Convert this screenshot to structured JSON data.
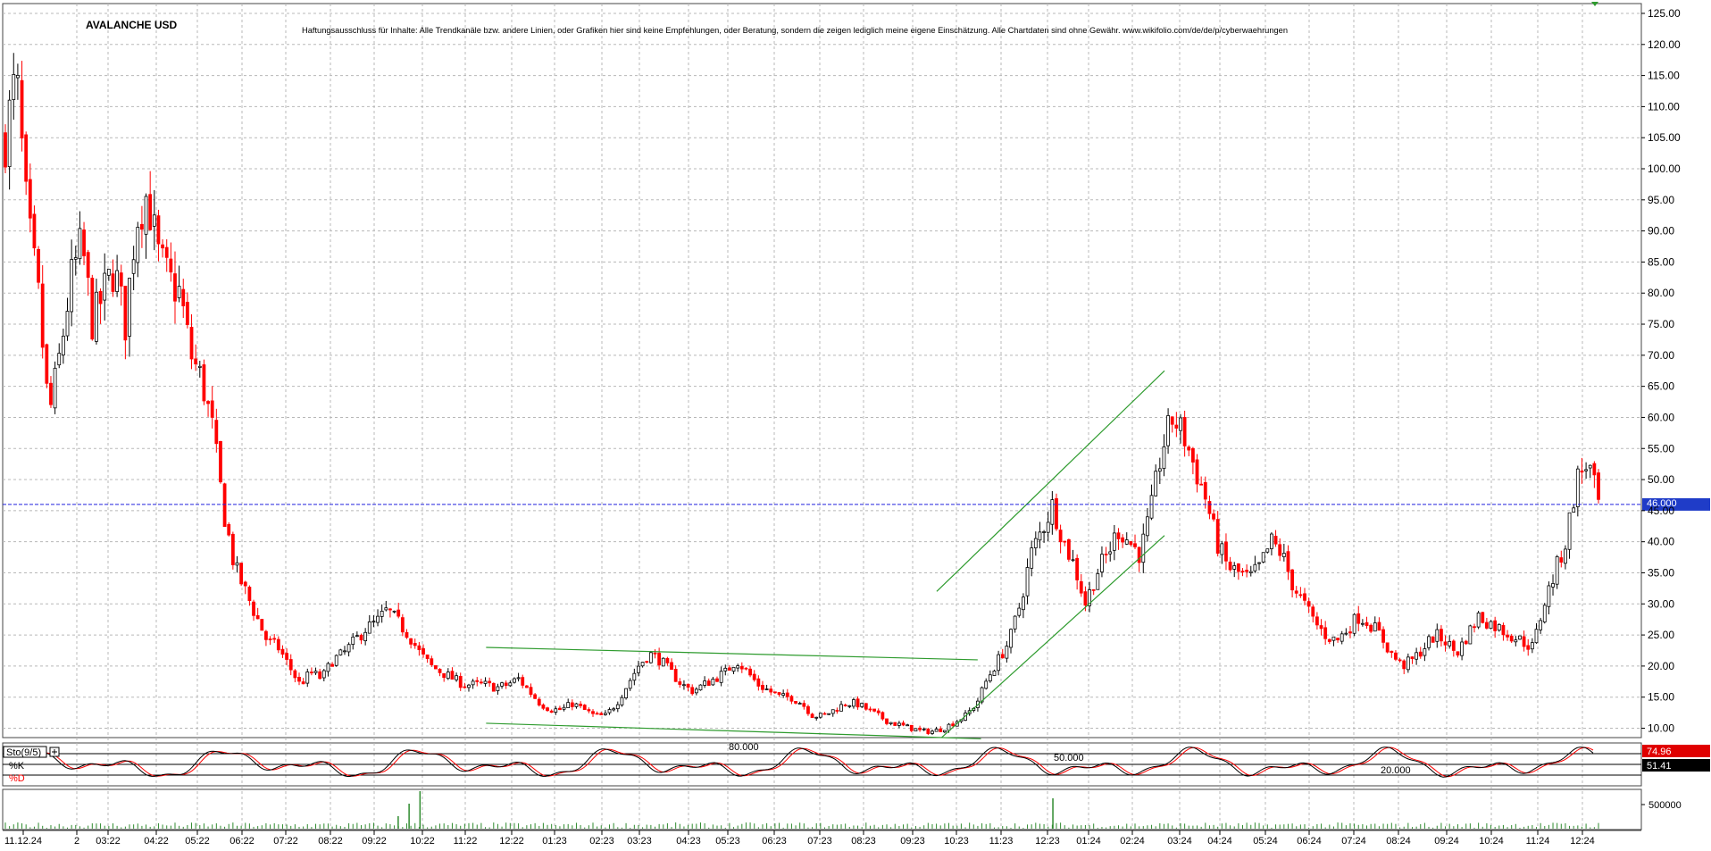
{
  "chart_data": {
    "type": "candlestick",
    "title": "AVALANCHE USD",
    "disclaimer": "Haftungsausschluss für Inhalte: Alle Trendkanäle bzw. andere Linien, oder Grafiken hier sind keine Empfehlungen, oder Beratung, sondern die zeigen lediglich meine eigene Einschätzung. Alle Chartdaten sind ohne Gewähr.  www.wikifolio.com/de/de/p/cyberwaehrungen",
    "y_ticks": [
      "125.00",
      "120.00",
      "115.00",
      "110.00",
      "105.00",
      "100.00",
      "95.00",
      "90.00",
      "85.00",
      "80.00",
      "75.00",
      "70.00",
      "65.00",
      "60.00",
      "55.00",
      "50.00",
      "45.00",
      "40.00",
      "35.00",
      "30.00",
      "25.00",
      "20.00",
      "15.00",
      "10.00"
    ],
    "ylim": [
      7.5,
      127
    ],
    "current_price": 46.0,
    "current_price_label": "46.000",
    "x_ticks": [
      "11.12.24",
      "2",
      "03:22",
      "04:22",
      "05:22",
      "06:22",
      "07:22",
      "08:22",
      "09:22",
      "10:22",
      "11:22",
      "12:22",
      "01:23",
      "02:23",
      "03:23",
      "04:23",
      "05:23",
      "06:23",
      "07:23",
      "08:23",
      "09:23",
      "10:23",
      "11:23",
      "12:23",
      "01:24",
      "02:24",
      "03:24",
      "04:24",
      "05:24",
      "06:24",
      "07:24",
      "08:24",
      "09:24",
      "10:24",
      "11:24",
      "12:24"
    ],
    "price_path": [
      [
        0,
        105
      ],
      [
        1,
        115
      ],
      [
        2,
        92
      ],
      [
        3,
        80
      ],
      [
        4,
        60
      ],
      [
        5,
        70
      ],
      [
        6,
        82
      ],
      [
        7,
        88
      ],
      [
        8,
        75
      ],
      [
        9,
        80
      ],
      [
        10,
        84
      ],
      [
        11,
        75
      ],
      [
        12,
        92
      ],
      [
        13,
        96
      ],
      [
        14,
        86
      ],
      [
        15,
        82
      ],
      [
        16,
        80
      ],
      [
        17,
        70
      ],
      [
        18,
        66
      ],
      [
        19,
        58
      ],
      [
        20,
        45
      ],
      [
        21,
        36
      ],
      [
        22,
        32
      ],
      [
        23,
        28
      ],
      [
        24,
        24
      ],
      [
        25,
        23
      ],
      [
        26,
        20
      ],
      [
        27,
        17
      ],
      [
        28,
        19
      ],
      [
        29,
        18
      ],
      [
        30,
        21
      ],
      [
        31,
        22
      ],
      [
        32,
        24
      ],
      [
        33,
        26
      ],
      [
        34,
        27
      ],
      [
        35,
        29
      ],
      [
        36,
        27
      ],
      [
        37,
        25
      ],
      [
        38,
        22
      ],
      [
        39,
        20
      ],
      [
        40,
        19
      ],
      [
        41,
        18
      ],
      [
        42,
        17
      ],
      [
        43,
        17
      ],
      [
        44,
        17
      ],
      [
        45,
        16.5
      ],
      [
        46,
        17
      ],
      [
        47,
        18
      ],
      [
        48,
        16
      ],
      [
        49,
        14
      ],
      [
        50,
        13
      ],
      [
        51,
        13
      ],
      [
        52,
        14
      ],
      [
        53,
        13
      ],
      [
        54,
        12
      ],
      [
        55,
        12
      ],
      [
        56,
        14
      ],
      [
        57,
        17
      ],
      [
        58,
        20
      ],
      [
        59,
        22
      ],
      [
        60,
        21
      ],
      [
        61,
        19
      ],
      [
        62,
        17
      ],
      [
        63,
        16
      ],
      [
        64,
        17
      ],
      [
        65,
        18
      ],
      [
        66,
        19
      ],
      [
        67,
        21
      ],
      [
        68,
        19
      ],
      [
        69,
        17
      ],
      [
        70,
        16
      ],
      [
        71,
        15
      ],
      [
        72,
        15
      ],
      [
        73,
        14
      ],
      [
        74,
        12
      ],
      [
        75,
        12
      ],
      [
        76,
        13
      ],
      [
        77,
        14
      ],
      [
        78,
        14
      ],
      [
        79,
        13
      ],
      [
        80,
        12
      ],
      [
        81,
        11
      ],
      [
        82,
        10.5
      ],
      [
        83,
        10
      ],
      [
        84,
        9.5
      ],
      [
        85,
        9.5
      ],
      [
        86,
        10
      ],
      [
        87,
        11
      ],
      [
        88,
        12
      ],
      [
        89,
        14
      ],
      [
        90,
        18
      ],
      [
        91,
        21
      ],
      [
        92,
        24
      ],
      [
        93,
        30
      ],
      [
        94,
        38
      ],
      [
        95,
        42
      ],
      [
        96,
        46
      ],
      [
        97,
        40
      ],
      [
        98,
        36
      ],
      [
        99,
        30
      ],
      [
        100,
        35
      ],
      [
        101,
        38
      ],
      [
        102,
        42
      ],
      [
        103,
        40
      ],
      [
        104,
        38
      ],
      [
        105,
        45
      ],
      [
        106,
        55
      ],
      [
        107,
        60
      ],
      [
        108,
        57
      ],
      [
        109,
        52
      ],
      [
        110,
        47
      ],
      [
        111,
        40
      ],
      [
        112,
        36
      ],
      [
        113,
        35
      ],
      [
        114,
        34
      ],
      [
        115,
        36
      ],
      [
        116,
        40
      ],
      [
        117,
        38
      ],
      [
        118,
        33
      ],
      [
        119,
        30
      ],
      [
        120,
        27
      ],
      [
        121,
        25
      ],
      [
        122,
        24
      ],
      [
        123,
        26
      ],
      [
        124,
        28
      ],
      [
        125,
        27
      ],
      [
        126,
        25
      ],
      [
        127,
        22
      ],
      [
        128,
        20
      ],
      [
        129,
        21
      ],
      [
        130,
        23
      ],
      [
        131,
        25
      ],
      [
        132,
        24
      ],
      [
        133,
        22
      ],
      [
        134,
        25
      ],
      [
        135,
        28
      ],
      [
        136,
        27
      ],
      [
        137,
        26
      ],
      [
        138,
        25
      ],
      [
        139,
        24
      ],
      [
        140,
        23
      ],
      [
        141,
        30
      ],
      [
        142,
        35
      ],
      [
        143,
        40
      ],
      [
        144,
        50
      ],
      [
        145,
        53
      ],
      [
        146,
        46
      ]
    ],
    "oscillator": {
      "name": "Sto(9/5)",
      "series": [
        "%K",
        "%D"
      ],
      "levels": [
        80,
        50,
        20
      ],
      "level_labels": [
        "80.000",
        "50.000",
        "20.000"
      ],
      "k_value": "74.96",
      "d_value": "51.41"
    },
    "volume": {
      "tick_label": "500000",
      "spikes": [
        [
          36,
          14
        ],
        [
          37,
          28
        ],
        [
          38,
          42
        ],
        [
          96,
          34
        ]
      ]
    },
    "trendlines": [
      {
        "from": [
          0.295,
          23.0
        ],
        "to": [
          0.595,
          21.0
        ]
      },
      {
        "from": [
          0.295,
          10.8
        ],
        "to": [
          0.597,
          8.3
        ]
      },
      {
        "from": [
          0.57,
          32.0
        ],
        "to": [
          0.709,
          67.5
        ]
      },
      {
        "from": [
          0.573,
          8.5
        ],
        "to": [
          0.709,
          41.0
        ]
      }
    ],
    "colors": {
      "bull": "#000000",
      "bear": "#ff0000",
      "grid": "#b8b8b8",
      "trendline": "#2e9b2e",
      "price_line": "#2222dd",
      "k_line": "#000000",
      "d_line": "#ff0000",
      "volume": "#2e8b2e"
    },
    "grid": true
  }
}
